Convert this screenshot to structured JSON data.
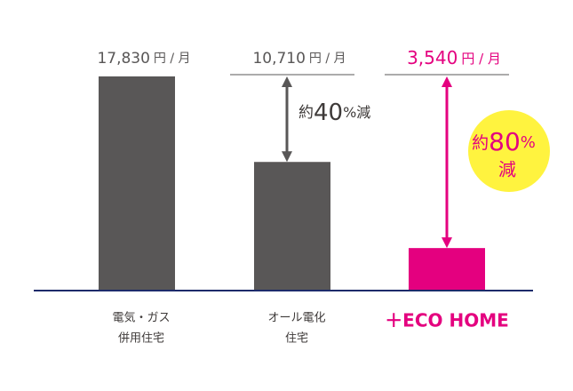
{
  "chart_data": {
    "type": "bar",
    "categories": [
      [
        "電気・ガス",
        "併用住宅"
      ],
      [
        "オール電化",
        "住宅"
      ],
      [
        "＋ECO HOME"
      ]
    ],
    "values": [
      17830,
      10710,
      3540
    ],
    "value_labels": [
      "17,830",
      "10,710",
      "3,540"
    ],
    "unit_label": "円 / 月",
    "colors": [
      "#595757",
      "#595757",
      "#e4007f"
    ],
    "axis_color": "#1d2b6b",
    "annotations": [
      {
        "prefix": "約",
        "number": "40",
        "suffix": "%減",
        "color": "#3e3a39"
      },
      {
        "prefix": "約",
        "number": "80",
        "suffix": "%",
        "line2": "減",
        "color": "#e4007f",
        "badge": "#fff33f"
      }
    ]
  }
}
